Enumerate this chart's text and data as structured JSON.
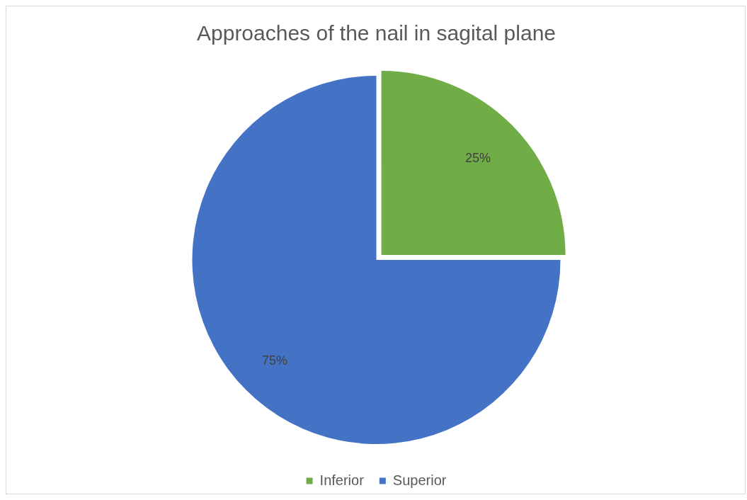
{
  "chart_data": {
    "type": "pie",
    "title": "Approaches of the nail in sagital plane",
    "categories": [
      "Inferior",
      "Superior"
    ],
    "values": [
      25,
      75
    ],
    "colors": [
      "#70ad47",
      "#4472c4"
    ],
    "value_labels": [
      "25%",
      "75%"
    ],
    "legend": "bottom"
  }
}
